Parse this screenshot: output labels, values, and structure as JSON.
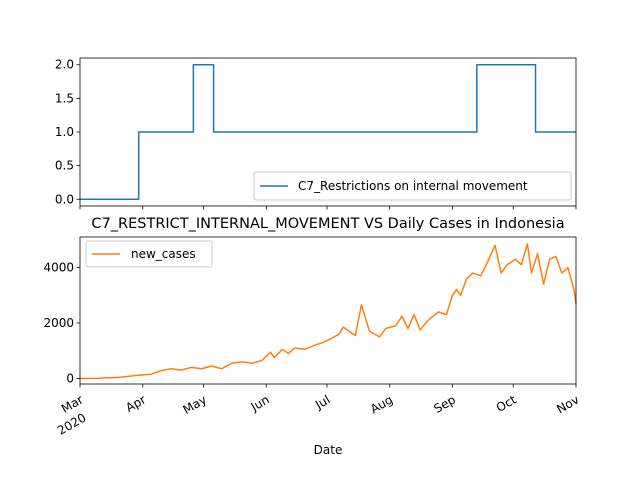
{
  "chart_data": [
    {
      "type": "line",
      "title": "",
      "xlabel": "",
      "ylabel": "",
      "ylim": [
        -0.1,
        2.1
      ],
      "yticks": [
        "0.0",
        "0.5",
        "1.0",
        "1.5",
        "2.0"
      ],
      "legend_position": "lower right",
      "color": "#1f77b4",
      "series": [
        {
          "name": "C7_Restrictions on internal movement",
          "x": [
            "2020-03-01",
            "2020-03-30",
            "2020-03-30",
            "2020-04-26",
            "2020-04-26",
            "2020-05-06",
            "2020-05-06",
            "2020-09-13",
            "2020-09-13",
            "2020-10-12",
            "2020-10-12",
            "2020-11-01"
          ],
          "y": [
            0,
            0,
            1,
            1,
            2,
            2,
            1,
            1,
            2,
            2,
            1,
            1
          ]
        }
      ]
    },
    {
      "type": "line",
      "title": "C7_RESTRICT_INTERNAL_MOVEMENT VS Daily Cases in Indonesia",
      "xlabel": "Date",
      "ylabel": "",
      "ylim": [
        -200,
        5100
      ],
      "yticks": [
        "0",
        "2000",
        "4000"
      ],
      "legend_position": "upper left",
      "color": "#ff7f0e",
      "x_tick_labels": [
        {
          "date": "2020-03-01",
          "label": "Mar",
          "sub": "2020"
        },
        {
          "date": "2020-04-01",
          "label": "Apr",
          "sub": ""
        },
        {
          "date": "2020-05-01",
          "label": "May",
          "sub": ""
        },
        {
          "date": "2020-06-01",
          "label": "Jun",
          "sub": ""
        },
        {
          "date": "2020-07-01",
          "label": "Jul",
          "sub": ""
        },
        {
          "date": "2020-08-01",
          "label": "Aug",
          "sub": ""
        },
        {
          "date": "2020-09-01",
          "label": "Sep",
          "sub": ""
        },
        {
          "date": "2020-10-01",
          "label": "Oct",
          "sub": ""
        },
        {
          "date": "2020-11-01",
          "label": "Nov",
          "sub": ""
        }
      ],
      "series": [
        {
          "name": "new_cases",
          "x": [
            "2020-03-01",
            "2020-03-10",
            "2020-03-20",
            "2020-03-28",
            "2020-04-05",
            "2020-04-10",
            "2020-04-15",
            "2020-04-20",
            "2020-04-25",
            "2020-04-30",
            "2020-05-05",
            "2020-05-10",
            "2020-05-15",
            "2020-05-20",
            "2020-05-25",
            "2020-05-30",
            "2020-06-03",
            "2020-06-05",
            "2020-06-09",
            "2020-06-12",
            "2020-06-15",
            "2020-06-20",
            "2020-06-25",
            "2020-06-29",
            "2020-07-02",
            "2020-07-07",
            "2020-07-09",
            "2020-07-12",
            "2020-07-15",
            "2020-07-18",
            "2020-07-22",
            "2020-07-27",
            "2020-07-30",
            "2020-08-04",
            "2020-08-07",
            "2020-08-10",
            "2020-08-13",
            "2020-08-16",
            "2020-08-20",
            "2020-08-25",
            "2020-08-29",
            "2020-09-01",
            "2020-09-03",
            "2020-09-05",
            "2020-09-08",
            "2020-09-11",
            "2020-09-15",
            "2020-09-19",
            "2020-09-22",
            "2020-09-25",
            "2020-09-28",
            "2020-10-02",
            "2020-10-05",
            "2020-10-08",
            "2020-10-10",
            "2020-10-13",
            "2020-10-16",
            "2020-10-19",
            "2020-10-22",
            "2020-10-25",
            "2020-10-28",
            "2020-10-31",
            "2020-11-01"
          ],
          "y": [
            0,
            5,
            40,
            100,
            150,
            280,
            350,
            300,
            400,
            350,
            450,
            350,
            550,
            600,
            550,
            650,
            950,
            750,
            1050,
            900,
            1100,
            1050,
            1200,
            1300,
            1400,
            1600,
            1850,
            1700,
            1550,
            2650,
            1700,
            1500,
            1800,
            1900,
            2250,
            1800,
            2300,
            1750,
            2100,
            2400,
            2300,
            3000,
            3200,
            3000,
            3600,
            3800,
            3700,
            4300,
            4800,
            3800,
            4100,
            4300,
            4100,
            4850,
            3800,
            4500,
            3400,
            4300,
            4400,
            3800,
            4000,
            3200,
            2700
          ]
        }
      ]
    }
  ]
}
